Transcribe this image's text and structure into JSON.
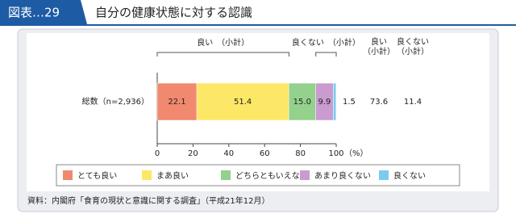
{
  "chart_data": {
    "type": "stacked-bar",
    "figure_label": "図表…29",
    "title": "自分の健康状態に対する認識",
    "categories": [
      "総数（n=2,936）"
    ],
    "series": [
      {
        "name": "とても良い",
        "color": "#f0896d",
        "values": [
          22.1
        ]
      },
      {
        "name": "まあ良い",
        "color": "#fde766",
        "values": [
          51.4
        ]
      },
      {
        "name": "どちらともいえない",
        "color": "#93d18c",
        "values": [
          15.0
        ],
        "value_labels": [
          "15.0"
        ]
      },
      {
        "name": "あまり良くない",
        "color": "#c99bcf",
        "values": [
          9.9
        ]
      },
      {
        "name": "良くない",
        "color": "#7ccbef",
        "values": [
          1.5
        ]
      }
    ],
    "subtotals": [
      {
        "label": "良い　（小計）",
        "header": [
          "良い",
          "（小計）"
        ],
        "values": [
          73.6
        ]
      },
      {
        "label": "良くない　（小計）",
        "header": [
          "良くない",
          "（小計）"
        ],
        "values": [
          11.4
        ]
      }
    ],
    "xlim": [
      0,
      100
    ],
    "xticks": [
      0,
      20,
      40,
      60,
      80,
      100
    ],
    "xlabel": "（%）",
    "source": "資料：内閣府「食育の現状と意識に関する調査」（平成21年12月）"
  }
}
